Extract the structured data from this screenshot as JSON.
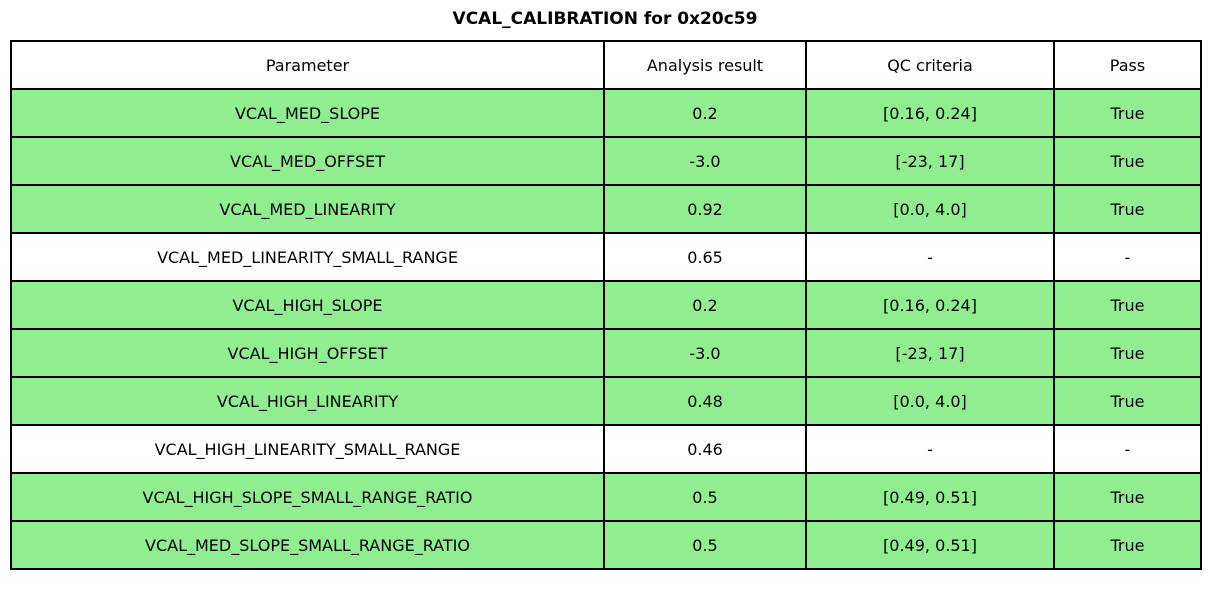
{
  "chart_data": {
    "type": "table",
    "title": "VCAL_CALIBRATION for 0x20c59",
    "columns": [
      "Parameter",
      "Analysis result",
      "QC criteria",
      "Pass"
    ],
    "rows": [
      [
        "VCAL_MED_SLOPE",
        "0.2",
        "[0.16, 0.24]",
        "True"
      ],
      [
        "VCAL_MED_OFFSET",
        "-3.0",
        "[-23, 17]",
        "True"
      ],
      [
        "VCAL_MED_LINEARITY",
        "0.92",
        "[0.0, 4.0]",
        "True"
      ],
      [
        "VCAL_MED_LINEARITY_SMALL_RANGE",
        "0.65",
        "-",
        "-"
      ],
      [
        "VCAL_HIGH_SLOPE",
        "0.2",
        "[0.16, 0.24]",
        "True"
      ],
      [
        "VCAL_HIGH_OFFSET",
        "-3.0",
        "[-23, 17]",
        "True"
      ],
      [
        "VCAL_HIGH_LINEARITY",
        "0.48",
        "[0.0, 4.0]",
        "True"
      ],
      [
        "VCAL_HIGH_LINEARITY_SMALL_RANGE",
        "0.46",
        "-",
        "-"
      ],
      [
        "VCAL_HIGH_SLOPE_SMALL_RANGE_RATIO",
        "0.5",
        "[0.49, 0.51]",
        "True"
      ],
      [
        "VCAL_MED_SLOPE_SMALL_RANGE_RATIO",
        "0.5",
        "[0.49, 0.51]",
        "True"
      ]
    ],
    "row_highlighted": [
      true,
      true,
      true,
      false,
      true,
      true,
      true,
      false,
      true,
      true
    ],
    "legend_position": "none",
    "grid": "full-cell-borders"
  },
  "colors": {
    "pass_green": "#90ee90",
    "neutral_white": "#ffffff",
    "border_black": "#000000"
  }
}
